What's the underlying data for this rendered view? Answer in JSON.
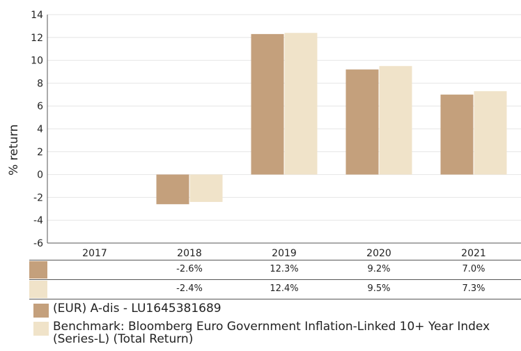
{
  "chart_data": {
    "type": "bar",
    "categories": [
      "2017",
      "2018",
      "2019",
      "2020",
      "2021"
    ],
    "ylabel": "% return",
    "ylim": [
      -6,
      14
    ],
    "yticks": [
      -6,
      -4,
      -2,
      0,
      2,
      4,
      6,
      8,
      10,
      12,
      14
    ],
    "grid": true,
    "series": [
      {
        "name": "(EUR) A-dis - LU1645381689",
        "color": "#c4a07c",
        "values": [
          null,
          -2.6,
          12.3,
          9.2,
          7.0
        ],
        "labels": [
          "",
          "-2.6%",
          "12.3%",
          "9.2%",
          "7.0%"
        ]
      },
      {
        "name": "Benchmark: Bloomberg Euro Government Inflation-Linked 10+ Year Index (Series-L) (Total Return)",
        "color": "#f0e3c9",
        "values": [
          null,
          -2.4,
          12.4,
          9.5,
          7.3
        ],
        "labels": [
          "",
          "-2.4%",
          "12.4%",
          "9.5%",
          "7.3%"
        ]
      }
    ]
  }
}
